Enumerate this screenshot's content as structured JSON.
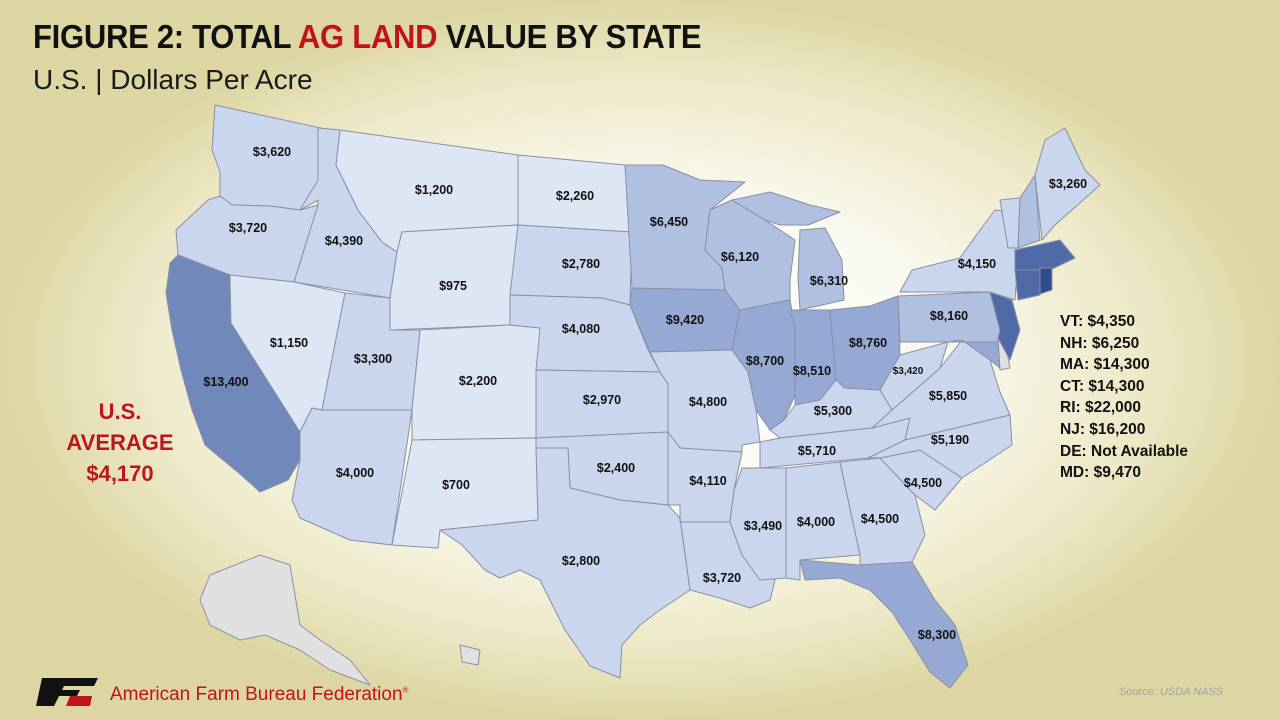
{
  "title": {
    "prefix": "FIGURE 2: TOTAL ",
    "highlight": "AG LAND",
    "suffix": " VALUE BY STATE"
  },
  "subtitle": "U.S. | Dollars Per Acre",
  "us_average": {
    "line1": "U.S.",
    "line2": "AVERAGE",
    "value": "$4,170"
  },
  "states": {
    "WA": "$3,620",
    "OR": "$3,720",
    "CA": "$13,400",
    "ID": "$4,390",
    "NV": "$1,150",
    "MT": "$1,200",
    "WY": "$975",
    "UT": "$3,300",
    "AZ": "$4,000",
    "CO": "$2,200",
    "NM": "$700",
    "ND": "$2,260",
    "SD": "$2,780",
    "NE": "$4,080",
    "KS": "$2,970",
    "OK": "$2,400",
    "TX": "$2,800",
    "MN": "$6,450",
    "IA": "$9,420",
    "MO": "$4,800",
    "AR": "$4,110",
    "LA": "$3,720",
    "WI": "$6,120",
    "IL": "$8,700",
    "MI": "$6,310",
    "IN": "$8,510",
    "OH": "$8,760",
    "KY": "$5,300",
    "TN": "$5,710",
    "MS": "$3,490",
    "AL": "$4,000",
    "GA": "$4,500",
    "FL": "$8,300",
    "SC": "$4,500",
    "NC": "$5,190",
    "VA": "$5,850",
    "WV": "$3,420",
    "PA": "$8,160",
    "NY": "$4,150",
    "ME": "$3,260"
  },
  "small_states": [
    "VT: $4,350",
    "NH: $6,250",
    "MA: $14,300",
    "CT: $14,300",
    "RI: $22,000",
    "NJ: $16,200",
    "DE: Not Available",
    "MD: $9,470"
  ],
  "legend_colors": {
    "lowest": "#dde6f5",
    "low": "#c9d6ee",
    "mid": "#afc0e0",
    "upper_mid": "#95a9d4",
    "high": "#7088ba",
    "higher": "#4f6aa6",
    "highest": "#2f4d8b",
    "not_available": "#e0e0e0"
  },
  "footer": {
    "org": "American Farm Bureau Federation",
    "source": "Source: USDA NASS"
  }
}
